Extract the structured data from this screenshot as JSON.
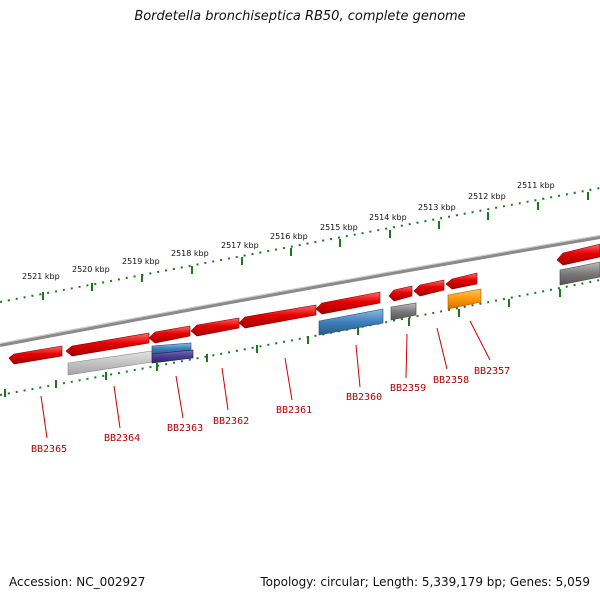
{
  "title": "Bordetella bronchiseptica RB50, complete genome",
  "footer": {
    "accession": "Accession: NC_002927",
    "summary": "Topology: circular; Length: 5,339,179 bp; Genes: 5,059"
  },
  "scale_labels": [
    "2521 kbp",
    "2520 kbp",
    "2519 kbp",
    "2518 kbp",
    "2517 kbp",
    "2516 kbp",
    "2515 kbp",
    "2514 kbp",
    "2513 kbp",
    "2512 kbp",
    "2511 kbp"
  ],
  "gene_labels": [
    "BB2365",
    "BB2364",
    "BB2363",
    "BB2362",
    "BB2361",
    "BB2360",
    "BB2359",
    "BB2358",
    "BB2357"
  ],
  "colors": {
    "gene": "#e60000",
    "blue_feature": "#3f7fba",
    "purple_feature": "#4a3d8f",
    "gray_feature": "#8c8c8c",
    "light_gray_feature": "#c2c2c2",
    "orange_feature": "#ff9900",
    "backbone": "#8a8a8a",
    "scale_ticks": "#1a7a1a",
    "labels": "#b00000"
  }
}
